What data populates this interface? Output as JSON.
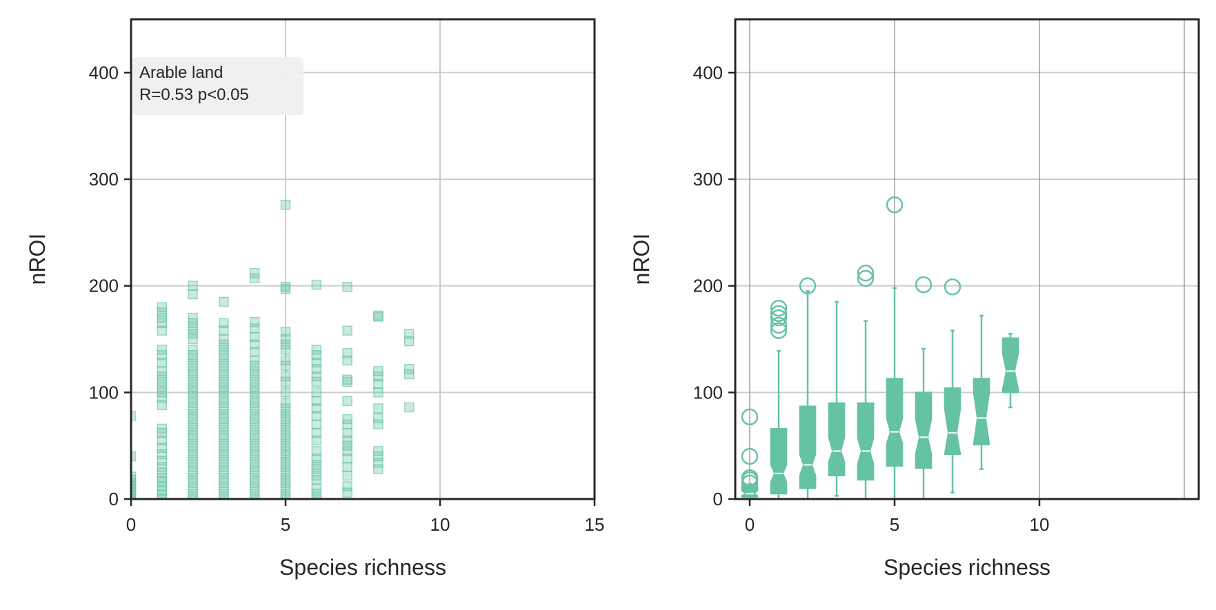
{
  "chart_data": [
    {
      "type": "scatter",
      "panel": "left",
      "xlabel": "Species richness",
      "ylabel": "nROI",
      "xlim": [
        0,
        15
      ],
      "ylim": [
        0,
        450
      ],
      "xticks": [
        "0",
        "5",
        "10",
        "15"
      ],
      "yticks": [
        "0",
        "100",
        "200",
        "300",
        "400"
      ],
      "grid": true,
      "color": "#66c2a5",
      "marker": "square",
      "annotation": {
        "line1": "Arable land",
        "line2": "R=0.53  p<0.05",
        "placement": "top-left"
      },
      "series": [
        {
          "x": 0,
          "y": [
            0,
            3,
            6,
            9,
            12,
            15,
            18,
            21,
            40,
            78
          ]
        },
        {
          "x": 1,
          "y": [
            0,
            4,
            8,
            12,
            16,
            20,
            25,
            30,
            36,
            42,
            48,
            55,
            62,
            66,
            88,
            95,
            100,
            105,
            110,
            115,
            120,
            128,
            135,
            140,
            158,
            165,
            170,
            175,
            180
          ]
        },
        {
          "x": 2,
          "y": [
            0,
            5,
            10,
            15,
            20,
            25,
            30,
            35,
            40,
            45,
            50,
            55,
            60,
            65,
            70,
            75,
            80,
            85,
            90,
            95,
            100,
            105,
            110,
            115,
            120,
            125,
            130,
            135,
            140,
            150,
            155,
            160,
            165,
            170,
            192,
            200
          ]
        },
        {
          "x": 3,
          "y": [
            0,
            5,
            10,
            15,
            20,
            25,
            30,
            35,
            40,
            45,
            50,
            55,
            60,
            65,
            70,
            75,
            80,
            85,
            90,
            95,
            100,
            105,
            110,
            115,
            120,
            125,
            130,
            135,
            140,
            145,
            150,
            158,
            165,
            185
          ]
        },
        {
          "x": 4,
          "y": [
            0,
            5,
            10,
            15,
            20,
            25,
            30,
            35,
            40,
            45,
            50,
            55,
            60,
            65,
            70,
            75,
            80,
            85,
            90,
            95,
            100,
            105,
            110,
            115,
            120,
            125,
            130,
            138,
            145,
            152,
            160,
            166,
            207,
            212
          ]
        },
        {
          "x": 5,
          "y": [
            0,
            5,
            10,
            15,
            20,
            25,
            30,
            35,
            40,
            45,
            50,
            55,
            60,
            65,
            70,
            75,
            80,
            85,
            90,
            100,
            110,
            115,
            125,
            130,
            140,
            145,
            150,
            157,
            197,
            199,
            276
          ]
        },
        {
          "x": 6,
          "y": [
            0,
            5,
            10,
            18,
            22,
            28,
            32,
            38,
            45,
            55,
            62,
            70,
            78,
            85,
            92,
            100,
            110,
            115,
            122,
            128,
            135,
            140,
            201
          ]
        },
        {
          "x": 7,
          "y": [
            6,
            12,
            22,
            30,
            38,
            45,
            50,
            55,
            62,
            70,
            75,
            92,
            110,
            112,
            130,
            137,
            158,
            199
          ]
        },
        {
          "x": 8,
          "y": [
            28,
            34,
            40,
            45,
            70,
            76,
            85,
            100,
            108,
            115,
            120,
            171,
            172
          ]
        },
        {
          "x": 9,
          "y": [
            86,
            117,
            122,
            148,
            155
          ]
        }
      ]
    },
    {
      "type": "box",
      "panel": "right",
      "xlabel": "Species richness",
      "ylabel": "nROI",
      "xlim": [
        -0.5,
        15.5
      ],
      "ylim": [
        0,
        450
      ],
      "xticks": [
        "0",
        "5",
        "10"
      ],
      "yticks": [
        "0",
        "100",
        "200",
        "300",
        "400"
      ],
      "grid": true,
      "notched": true,
      "color": "#66c2a5",
      "boxes": [
        {
          "x": 0,
          "whislo": 0,
          "q1": 2,
          "med": 5,
          "q3": 12,
          "whishi": 14,
          "notchlo": 3,
          "notchhi": 8,
          "fliers": [
            15,
            18,
            20,
            40,
            77
          ]
        },
        {
          "x": 1,
          "whislo": 0,
          "q1": 5,
          "med": 24,
          "q3": 66,
          "whishi": 139,
          "notchlo": 16,
          "notchhi": 32,
          "fliers": [
            158,
            163,
            170,
            174,
            179
          ]
        },
        {
          "x": 2,
          "whislo": 0,
          "q1": 10,
          "med": 32,
          "q3": 87,
          "whishi": 195,
          "notchlo": 22,
          "notchhi": 42,
          "fliers": [
            200
          ]
        },
        {
          "x": 3,
          "whislo": 3,
          "q1": 22,
          "med": 45,
          "q3": 90,
          "whishi": 185,
          "notchlo": 35,
          "notchhi": 58,
          "fliers": []
        },
        {
          "x": 4,
          "whislo": 0,
          "q1": 18,
          "med": 45,
          "q3": 90,
          "whishi": 167,
          "notchlo": 33,
          "notchhi": 57,
          "fliers": [
            207,
            212
          ]
        },
        {
          "x": 5,
          "whislo": 0,
          "q1": 31,
          "med": 63,
          "q3": 113,
          "whishi": 198,
          "notchlo": 52,
          "notchhi": 76,
          "fliers": [
            276
          ]
        },
        {
          "x": 6,
          "whislo": 0,
          "q1": 29,
          "med": 58,
          "q3": 100,
          "whishi": 141,
          "notchlo": 42,
          "notchhi": 75,
          "fliers": [
            201
          ]
        },
        {
          "x": 7,
          "whislo": 6,
          "q1": 42,
          "med": 62,
          "q3": 104,
          "whishi": 158,
          "notchlo": 42,
          "notchhi": 85,
          "fliers": [
            199
          ]
        },
        {
          "x": 8,
          "whislo": 28,
          "q1": 51,
          "med": 76,
          "q3": 113,
          "whishi": 172,
          "notchlo": 51,
          "notchhi": 100,
          "fliers": []
        },
        {
          "x": 9,
          "whislo": 86,
          "q1": 100,
          "med": 120,
          "q3": 151,
          "whishi": 155,
          "notchlo": 103,
          "notchhi": 137,
          "fliers": []
        }
      ]
    }
  ]
}
